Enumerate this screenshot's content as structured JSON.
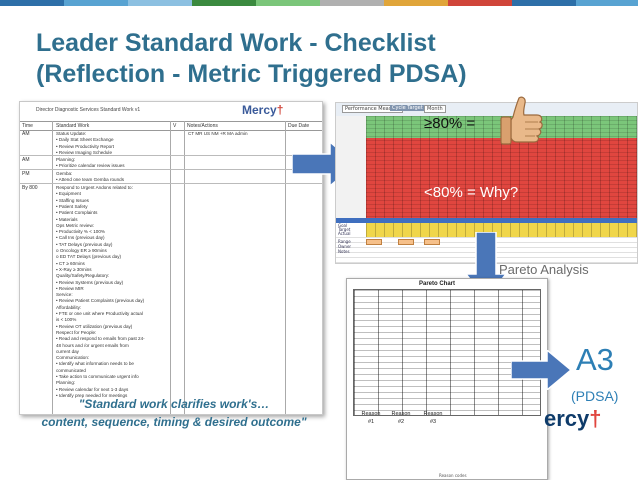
{
  "title": {
    "line1": "Leader Standard Work - Checklist",
    "line2": "(Reflection - Metric Triggered PDSA)"
  },
  "colors": {
    "title": "#2f6f8e",
    "topbar": [
      "#2d6fa8",
      "#58a3d2",
      "#8cc0e1",
      "#3b8a3f",
      "#7bc67a",
      "#b0b0b0",
      "#e0a53a",
      "#d0453a",
      "#2d6fa8",
      "#58a3d2"
    ],
    "green_zone": "#7bc67a",
    "red_zone": "#e0463f",
    "arrow_fill": "#4a76b8",
    "a3_text": "#2d7fb5"
  },
  "checklist": {
    "doc_title": "Director Diagnostic Services Standard Work v1",
    "logo": "Mercy",
    "columns": [
      "Time",
      "Standard Work",
      "V",
      "Notes/Actions",
      "Due Date"
    ],
    "day_codes": "CT  MR  US  NM  +R  MA  admin",
    "rows": [
      {
        "time": "AM",
        "items": [
          "Status Update:",
          "•  Daily Stat Sheet Exchange",
          "•  Review Productivity Report",
          "•  Review Imaging Schedule"
        ]
      },
      {
        "time": "AM",
        "items": [
          "Planning:",
          "•  Prioritize calendar review issues"
        ]
      },
      {
        "time": "PM",
        "items": [
          "Gemba:",
          "•  Attend one team Gemba rounds"
        ]
      },
      {
        "time": "By 800",
        "items": [
          "Respond to Urgent Andons related to:",
          "•  Equipment",
          "•  Staffing Issues",
          "•  Patient Safety",
          "•  Patient Complaints",
          "•  Materials",
          "Ops Metric review:",
          "•  Productivity % < 100%",
          "•  Call Ins (previous day)",
          "•  TAT Delays (previous day)",
          "    o  Oncology ER ≥ 90mins",
          "    o  ED TAT Delays (previous day)",
          "           ▪  CT ≥ 60mins",
          "           ▪  X-Ray ≥ 30mins",
          "Quality/Safety/Regulatory:",
          "•  Review Systems (previous day)",
          "•  Review MIR",
          "Service:",
          "•  Review Patient Complaints (previous day)",
          "Affordability:",
          "•  FTE or one unit where Productivity actual",
          "    is < 100%",
          "•  Review OT utilization (previous day)",
          "Respect for People:",
          "•  Read and respond to emails from past 24-",
          "    48 hours and /or urgent emails from",
          "    current day",
          "Communication:",
          "•  Identify what information needs to be",
          "    communicated",
          "•  Take action to communicate urgent info",
          "Planning:",
          "•  Review calendar for next 1-3 days",
          "•  Identify prep needed for meetings"
        ]
      }
    ]
  },
  "tracker": {
    "header_label_1": "Performance Measure",
    "header_label_2": "Cycle Target",
    "header_label_3": "Month",
    "row_labels": [
      "Goal",
      "Target",
      "Actual",
      "Variance"
    ],
    "bottom_labels": [
      "Range",
      "Owner",
      "Notes"
    ]
  },
  "labels": {
    "green_label": "≥80% =",
    "red_label": "<80% = Why?",
    "pareto_analysis": "Pareto Analysis",
    "a3": "A3",
    "pdsa": "(PDSA)"
  },
  "pareto": {
    "title": "Pareto Chart",
    "reasons": [
      {
        "line1": "Reason",
        "line2": "#1"
      },
      {
        "line1": "Reason",
        "line2": "#2"
      },
      {
        "line1": "Reason",
        "line2": "#3"
      }
    ],
    "footer": "Reason codes"
  },
  "logo_bottom": {
    "text": "ercy",
    "mark": "†"
  },
  "quote": {
    "line1": "\"Standard work clarifies work's…",
    "line2": "content, sequence, timing & desired outcome\""
  },
  "icons": [
    "thumbs-up-icon",
    "right-arrow-icon",
    "down-arrow-icon",
    "mercy-cross-icon"
  ]
}
